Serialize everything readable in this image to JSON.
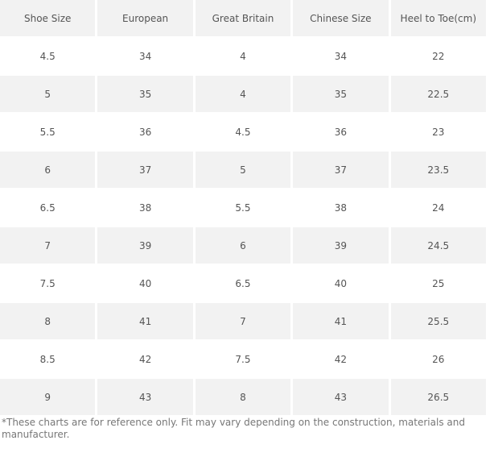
{
  "table": {
    "header": [
      "Shoe Size",
      "European",
      "Great Britain",
      "Chinese Size",
      "Heel to Toe(cm)"
    ],
    "rows": [
      [
        "4.5",
        "34",
        "4",
        "34",
        "22"
      ],
      [
        "5",
        "35",
        "4",
        "35",
        "22.5"
      ],
      [
        "5.5",
        "36",
        "4.5",
        "36",
        "23"
      ],
      [
        "6",
        "37",
        "5",
        "37",
        "23.5"
      ],
      [
        "6.5",
        "38",
        "5.5",
        "38",
        "24"
      ],
      [
        "7",
        "39",
        "6",
        "39",
        "24.5"
      ],
      [
        "7.5",
        "40",
        "6.5",
        "40",
        "25"
      ],
      [
        "8",
        "41",
        "7",
        "41",
        "25.5"
      ],
      [
        "8.5",
        "42",
        "7.5",
        "42",
        "26"
      ],
      [
        "9",
        "43",
        "8",
        "43",
        "26.5"
      ]
    ]
  },
  "footnote": "*These charts are for reference only. Fit may vary depending on the construction, materials and manufacturer."
}
